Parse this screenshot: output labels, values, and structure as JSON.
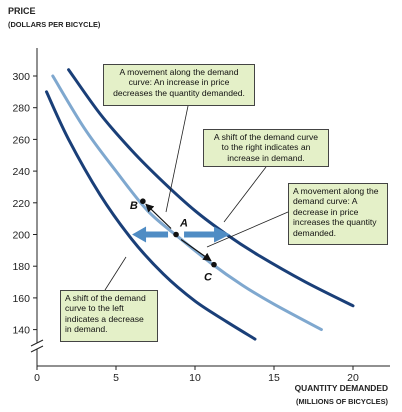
{
  "chart_data": {
    "type": "line",
    "title": "",
    "ylabel_line1": "Price",
    "ylabel_line2": "(dollars per bicycle)",
    "xlabel_line1": "Quantity demanded",
    "xlabel_line2": "(millions of bicycles)",
    "xlim": [
      0,
      22
    ],
    "ylim": [
      130,
      310
    ],
    "xticks": [
      0,
      5,
      10,
      15,
      20
    ],
    "yticks": [
      140,
      160,
      180,
      200,
      220,
      240,
      260,
      280,
      300
    ],
    "axis_break": true,
    "grid": false,
    "series": [
      {
        "role": "left-demand",
        "color": "#1a3f78",
        "points": [
          [
            0.6,
            290
          ],
          [
            2,
            260
          ],
          [
            4,
            225
          ],
          [
            6,
            197
          ],
          [
            8,
            175
          ],
          [
            10,
            158
          ],
          [
            12,
            145
          ],
          [
            13.8,
            134
          ]
        ]
      },
      {
        "role": "original-demand",
        "color": "#7fa8cf",
        "points": [
          [
            1,
            300
          ],
          [
            3,
            267
          ],
          [
            5,
            240
          ],
          [
            7,
            215
          ],
          [
            9,
            198
          ],
          [
            11,
            182
          ],
          [
            13,
            168
          ],
          [
            15,
            156
          ],
          [
            18,
            140
          ]
        ]
      },
      {
        "role": "right-demand",
        "color": "#1a3f78",
        "points": [
          [
            2,
            304
          ],
          [
            4,
            276
          ],
          [
            6,
            253
          ],
          [
            8,
            233
          ],
          [
            10,
            215
          ],
          [
            12,
            200
          ],
          [
            14,
            187
          ],
          [
            17,
            170
          ],
          [
            20,
            155
          ]
        ]
      }
    ],
    "points": [
      {
        "label": "A",
        "x": 8.8,
        "y": 200
      },
      {
        "label": "B",
        "x": 6.7,
        "y": 221
      },
      {
        "label": "C",
        "x": 11.2,
        "y": 181
      }
    ],
    "annotations": [
      {
        "id": "movement-up",
        "lines": [
          "A movement along the demand",
          "curve: An increase in price",
          "decreases the quantity demanded."
        ]
      },
      {
        "id": "shift-right",
        "lines": [
          "A shift of the demand curve",
          "to the right indicates an",
          "increase in demand."
        ]
      },
      {
        "id": "movement-down",
        "lines": [
          "A movement along the",
          "demand curve: A",
          "decrease in price",
          "increases the quantity",
          "demanded."
        ]
      },
      {
        "id": "shift-left",
        "lines": [
          "A shift of the demand",
          "curve to the left",
          "indicates a decrease",
          "in demand."
        ]
      }
    ],
    "colors": {
      "dark_curve": "#1a3f78",
      "light_curve": "#7fa8cf",
      "shift_arrow": "#4f8cc4",
      "annotation_fill": "#e4f0c8"
    }
  }
}
